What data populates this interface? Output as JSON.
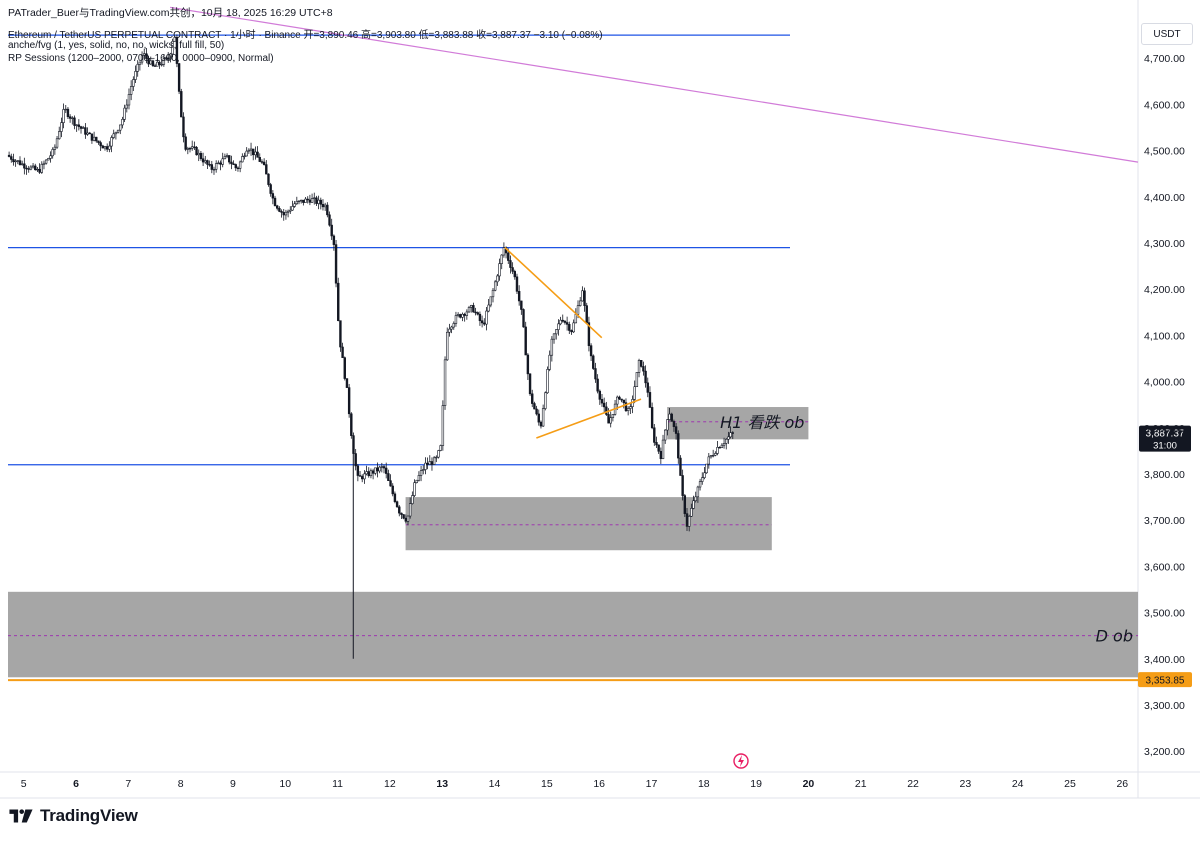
{
  "header": {
    "share_text": "PATrader_Buer与TradingView.com共创，10月 18, 2025 16:29 UTC+8",
    "symbol_line": "Ethereum / TetherUS PERPETUAL CONTRACT · 1小时 · Binance",
    "ohlc": {
      "open": "开=3,890.46",
      "high": "高=3,903.80",
      "low": "低=3,883.88",
      "close": "收=3,887.37",
      "change": "−3.10 (−0.08%)"
    },
    "indicator_1": "anche/fvg (1, yes, solid, no, no, wicks, full fill, 50)",
    "indicator_2": "RP Sessions (1200–2000, 0700–1600, 0000–0900, Normal)",
    "currency": "USDT"
  },
  "brand": {
    "name": "TradingView"
  },
  "colors": {
    "up": "#131722",
    "down": "#131722",
    "level_line": "#1e53e5",
    "trend_line": "#f59d16",
    "diag_line": "#d17bd8",
    "zone_fill": "#9e9e9e",
    "midline": "#9c27b0",
    "price_label_bg": "#131722",
    "alert_label_bg": "#f59d16"
  },
  "chart_data": {
    "type": "candlestick",
    "timeframe": "1小时",
    "x_axis": {
      "ticks": [
        "5",
        "6",
        "7",
        "8",
        "9",
        "10",
        "11",
        "12",
        "13",
        "14",
        "15",
        "16",
        "17",
        "18",
        "19",
        "20",
        "21",
        "22",
        "23",
        "24",
        "25",
        "26"
      ],
      "bold_ticks": [
        "6",
        "13",
        "20"
      ],
      "day_range": [
        4.7,
        26.3
      ]
    },
    "y_axis": {
      "ticks": [
        3200,
        3300,
        3400,
        3500,
        3600,
        3700,
        3800,
        3900,
        4000,
        4100,
        4200,
        4300,
        4400,
        4500,
        4600,
        4700
      ],
      "tick_labels": [
        "3,200.00",
        "3,300.00",
        "3,400.00",
        "3,500.00",
        "3,600.00",
        "3,700.00",
        "3,800.00",
        "3,900.00",
        "4,000.00",
        "4,100.00",
        "4,200.00",
        "4,300.00",
        "4,400.00",
        "4,500.00",
        "4,600.00",
        "4,700.00"
      ],
      "range": [
        3155,
        4800
      ]
    },
    "price_path": [
      [
        4.7,
        4490
      ],
      [
        5.0,
        4470
      ],
      [
        5.3,
        4455
      ],
      [
        5.6,
        4500
      ],
      [
        5.8,
        4590
      ],
      [
        6.0,
        4560
      ],
      [
        6.3,
        4530
      ],
      [
        6.6,
        4505
      ],
      [
        6.9,
        4565
      ],
      [
        7.1,
        4650
      ],
      [
        7.3,
        4710
      ],
      [
        7.5,
        4680
      ],
      [
        7.8,
        4700
      ],
      [
        7.9,
        4760
      ],
      [
        8.0,
        4610
      ],
      [
        8.1,
        4510
      ],
      [
        8.3,
        4500
      ],
      [
        8.6,
        4460
      ],
      [
        8.9,
        4485
      ],
      [
        9.1,
        4460
      ],
      [
        9.3,
        4510
      ],
      [
        9.6,
        4470
      ],
      [
        9.8,
        4390
      ],
      [
        10.0,
        4360
      ],
      [
        10.2,
        4385
      ],
      [
        10.5,
        4395
      ],
      [
        10.8,
        4380
      ],
      [
        10.95,
        4300
      ],
      [
        11.05,
        4100
      ],
      [
        11.2,
        3980
      ],
      [
        11.3,
        3870
      ],
      [
        11.4,
        3790
      ],
      [
        11.6,
        3800
      ],
      [
        11.9,
        3815
      ],
      [
        12.0,
        3780
      ],
      [
        12.2,
        3720
      ],
      [
        12.35,
        3700
      ],
      [
        12.5,
        3780
      ],
      [
        12.7,
        3820
      ],
      [
        12.9,
        3830
      ],
      [
        13.0,
        3860
      ],
      [
        13.1,
        4110
      ],
      [
        13.3,
        4140
      ],
      [
        13.6,
        4160
      ],
      [
        13.8,
        4120
      ],
      [
        14.0,
        4200
      ],
      [
        14.2,
        4290
      ],
      [
        14.4,
        4230
      ],
      [
        14.55,
        4140
      ],
      [
        14.7,
        3970
      ],
      [
        14.9,
        3900
      ],
      [
        15.1,
        4080
      ],
      [
        15.3,
        4140
      ],
      [
        15.5,
        4110
      ],
      [
        15.7,
        4200
      ],
      [
        15.85,
        4060
      ],
      [
        16.0,
        3980
      ],
      [
        16.2,
        3910
      ],
      [
        16.4,
        3970
      ],
      [
        16.6,
        3930
      ],
      [
        16.8,
        4050
      ],
      [
        16.95,
        3980
      ],
      [
        17.05,
        3880
      ],
      [
        17.2,
        3840
      ],
      [
        17.35,
        3940
      ],
      [
        17.5,
        3880
      ],
      [
        17.6,
        3760
      ],
      [
        17.7,
        3690
      ],
      [
        17.8,
        3730
      ],
      [
        17.95,
        3780
      ],
      [
        18.1,
        3830
      ],
      [
        18.3,
        3860
      ],
      [
        18.5,
        3880
      ],
      [
        18.55,
        3887.37
      ]
    ],
    "wick_extremes": [
      {
        "x": 11.3,
        "low": 3400
      }
    ],
    "horizontal_levels": [
      4750,
      4290,
      3820
    ],
    "trend_lines": [
      {
        "from": [
          14.2,
          4290
        ],
        "to": [
          16.05,
          4095
        ]
      },
      {
        "from": [
          14.8,
          3878
        ],
        "to": [
          16.8,
          3962
        ]
      }
    ],
    "diagonal_line": {
      "from": [
        7.8,
        4810
      ],
      "to": [
        26.3,
        4475
      ]
    },
    "zones": [
      {
        "label": "H1 看跌 ob",
        "x_from": 17.3,
        "x_to": 20.0,
        "top": 3945,
        "bottom": 3875,
        "mid": 3913
      },
      {
        "label": "",
        "x_from": 12.3,
        "x_to": 19.3,
        "top": 3750,
        "bottom": 3635,
        "mid": 3690
      },
      {
        "label": "D ob",
        "x_from": 4.7,
        "x_to": 26.3,
        "top": 3545,
        "bottom": 3360,
        "mid": 3450
      }
    ],
    "alert_level": {
      "value": 3353.85,
      "label": "3,353.85"
    },
    "last_price": {
      "value": 3887.37,
      "label": "3,887.37",
      "countdown": "31:00"
    }
  }
}
